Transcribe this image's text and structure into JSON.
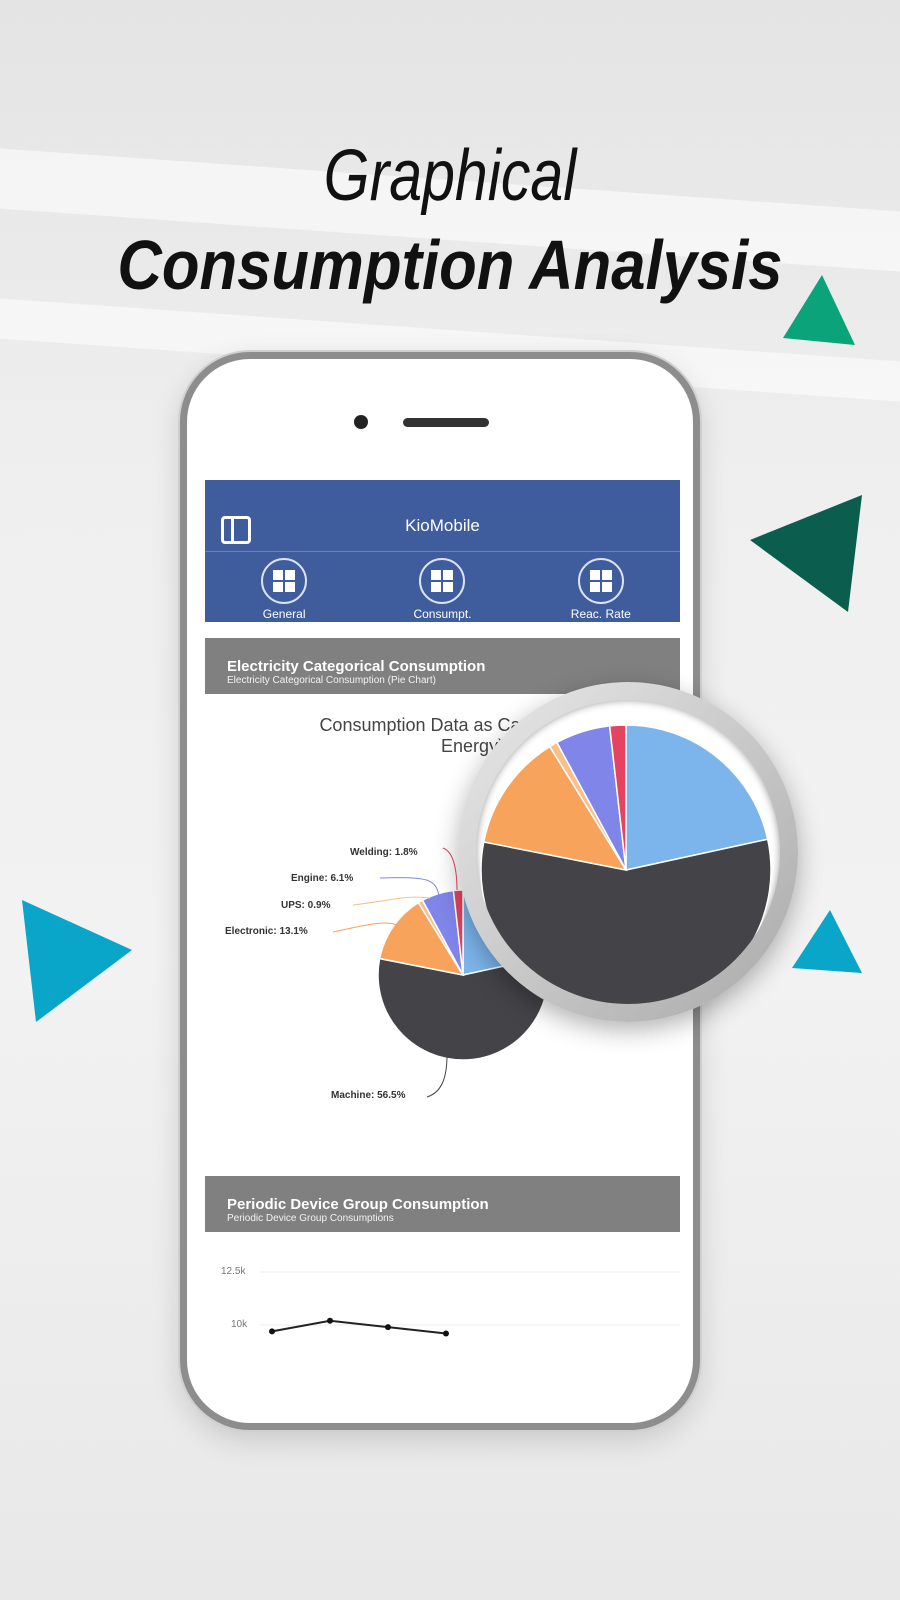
{
  "headline": {
    "line1": "Graphical",
    "line2": "Consumption Analysis"
  },
  "colors": {
    "appbar": "#3f5d9c",
    "section": "#808080",
    "accent_green": "#0aa37a",
    "accent_dark_green": "#0b5e4e",
    "accent_blue": "#0aa6c9"
  },
  "app": {
    "title": "KioMobile",
    "menu_icon": "sidebar-toggle-icon",
    "tabs": [
      {
        "label": "General",
        "icon": "dashboard-icon"
      },
      {
        "label": "Consumpt.",
        "icon": "dashboard-icon"
      },
      {
        "label": "Reac. Rate",
        "icon": "dashboard-icon"
      }
    ],
    "section1": {
      "title": "Electricity Categorical Consumption",
      "subtitle": "Electricity Categorical Consumption (Pie Chart)"
    },
    "section2": {
      "title": "Periodic Device Group Consumption",
      "subtitle": "Periodic Device Group Consumptions"
    }
  },
  "chart_data": [
    {
      "type": "pie",
      "title_line1": "Consumption Data as Cat",
      "title_line2": "Energy)",
      "slices": [
        {
          "label": "",
          "value": 21.6,
          "color": "#7cb5ec",
          "text": ""
        },
        {
          "label": "Machine",
          "value": 56.5,
          "color": "#434348",
          "text": "Machine: 56.5%"
        },
        {
          "label": "Electronic",
          "value": 13.1,
          "color": "#f7a35c",
          "text": "Electronic: 13.1%"
        },
        {
          "label": "UPS",
          "value": 0.9,
          "color": "#f7c08a",
          "text": "UPS: 0.9%"
        },
        {
          "label": "Engine",
          "value": 6.1,
          "color": "#8085e9",
          "text": "Engine: 6.1%"
        },
        {
          "label": "Welding",
          "value": 1.8,
          "color": "#e4445f",
          "text": "Welding: 1.8%"
        }
      ]
    },
    {
      "type": "line",
      "y_ticks": [
        "12.5k",
        "10k"
      ],
      "ylim": [
        9000,
        12500
      ],
      "values": [
        9700,
        10200,
        9900,
        9600
      ],
      "grid": true
    }
  ]
}
